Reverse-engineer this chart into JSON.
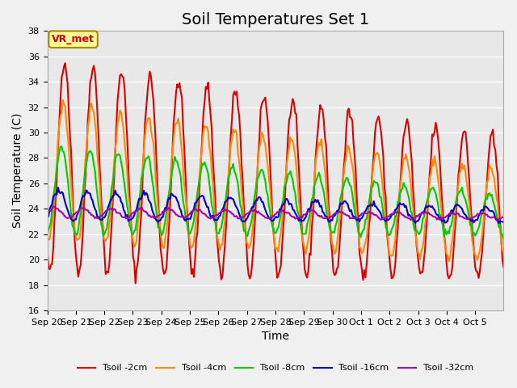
{
  "title": "Soil Temperatures Set 1",
  "xlabel": "Time",
  "ylabel": "Soil Temperature (C)",
  "ylim": [
    16,
    38
  ],
  "yticks": [
    16,
    18,
    20,
    22,
    24,
    26,
    28,
    30,
    32,
    34,
    36,
    38
  ],
  "x_labels": [
    "Sep 20",
    "Sep 21",
    "Sep 22",
    "Sep 23",
    "Sep 24",
    "Sep 25",
    "Sep 26",
    "Sep 27",
    "Sep 28",
    "Sep 29",
    "Sep 30",
    "Oct 1",
    "Oct 2",
    "Oct 3",
    "Oct 4",
    "Oct 5"
  ],
  "annotation_text": "VR_met",
  "annotation_box_color": "#ffff99",
  "annotation_border_color": "#aa8800",
  "lines": {
    "Tsoil -2cm": {
      "color": "#dd0000",
      "linewidth": 1.5
    },
    "Tsoil -4cm": {
      "color": "#ff8800",
      "linewidth": 1.5
    },
    "Tsoil -8cm": {
      "color": "#00cc00",
      "linewidth": 1.5
    },
    "Tsoil -16cm": {
      "color": "#0000cc",
      "linewidth": 1.5
    },
    "Tsoil -32cm": {
      "color": "#aa00aa",
      "linewidth": 1.5
    }
  },
  "background_color": "#e8e8e8",
  "grid_color": "#ffffff",
  "title_fontsize": 14,
  "axis_fontsize": 10,
  "tick_fontsize": 8
}
